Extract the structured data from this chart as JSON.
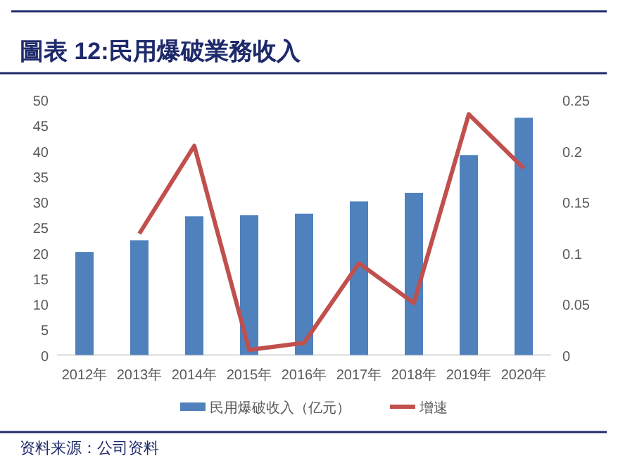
{
  "chart_data": {
    "type": "bar",
    "title": "圖表 12:民用爆破業務收入",
    "categories": [
      "2012年",
      "2013年",
      "2014年",
      "2015年",
      "2016年",
      "2017年",
      "2018年",
      "2019年",
      "2020年"
    ],
    "series": [
      {
        "name": "民用爆破收入（亿元）",
        "color": "#4f81bd",
        "values": [
          20.2,
          22.5,
          27.2,
          27.4,
          27.7,
          30.1,
          31.8,
          39.2,
          46.5
        ]
      },
      {
        "name": "增速",
        "type": "line",
        "axis": "y2",
        "color": "#c0504d",
        "values": [
          null,
          0.119,
          0.205,
          0.005,
          0.012,
          0.09,
          0.051,
          0.236,
          0.183
        ]
      }
    ],
    "ylim": [
      0,
      50
    ],
    "yticks": [
      0,
      5,
      10,
      15,
      20,
      25,
      30,
      35,
      40,
      45,
      50
    ],
    "y2lim": [
      0,
      0.25
    ],
    "y2ticks": [
      0,
      0.05,
      0.1,
      0.15,
      0.2,
      0.25
    ],
    "grid": false,
    "legend": "bottom",
    "marker": "none",
    "annotations": [
      "资料来源：公司资料"
    ]
  }
}
